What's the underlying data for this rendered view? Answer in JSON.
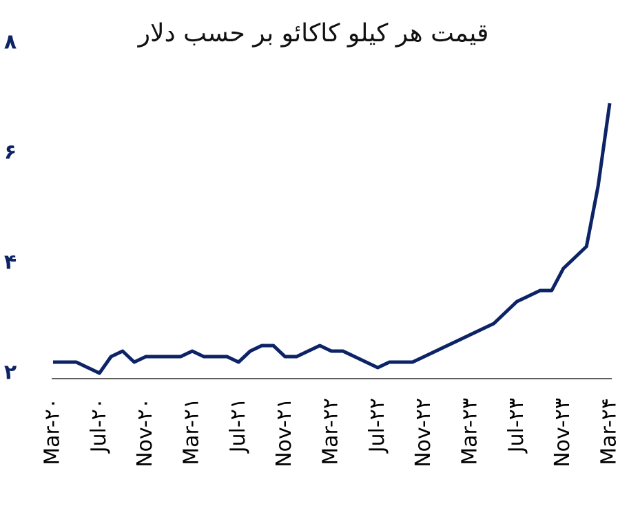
{
  "chart_data": {
    "type": "line",
    "title": "قیمت هر کیلو کاکائو بر حسب دلار",
    "categories": [
      "Mar-۲۰",
      null,
      null,
      null,
      "Jul-۲۰",
      null,
      null,
      null,
      "Nov-۲۰",
      null,
      null,
      null,
      "Mar-۲۱",
      null,
      null,
      null,
      "Jul-۲۱",
      null,
      null,
      null,
      "Nov-۲۱",
      null,
      null,
      null,
      "Mar-۲۲",
      null,
      null,
      null,
      "Jul-۲۲",
      null,
      null,
      null,
      "Nov-۲۲",
      null,
      null,
      null,
      "Mar-۲۳",
      null,
      null,
      null,
      "Jul-۲۳",
      null,
      null,
      null,
      "Nov-۲۳",
      null,
      null,
      null,
      "Mar-۲۴"
    ],
    "values": [
      2.3,
      2.3,
      2.3,
      2.2,
      2.1,
      2.4,
      2.5,
      2.3,
      2.4,
      2.4,
      2.4,
      2.4,
      2.5,
      2.4,
      2.4,
      2.4,
      2.3,
      2.5,
      2.6,
      2.6,
      2.4,
      2.4,
      2.5,
      2.6,
      2.5,
      2.5,
      2.4,
      2.3,
      2.2,
      2.3,
      2.3,
      2.3,
      2.4,
      2.5,
      2.6,
      2.7,
      2.8,
      2.9,
      3.0,
      3.2,
      3.4,
      3.5,
      3.6,
      3.6,
      4.0,
      4.2,
      4.4,
      5.5,
      7.0
    ],
    "color": "#0c2366",
    "ylim": [
      2,
      8
    ],
    "yticks": [
      {
        "value": 2,
        "label": "۲"
      },
      {
        "value": 4,
        "label": "۴"
      },
      {
        "value": 6,
        "label": "۶"
      },
      {
        "value": 8,
        "label": "۸"
      }
    ]
  }
}
